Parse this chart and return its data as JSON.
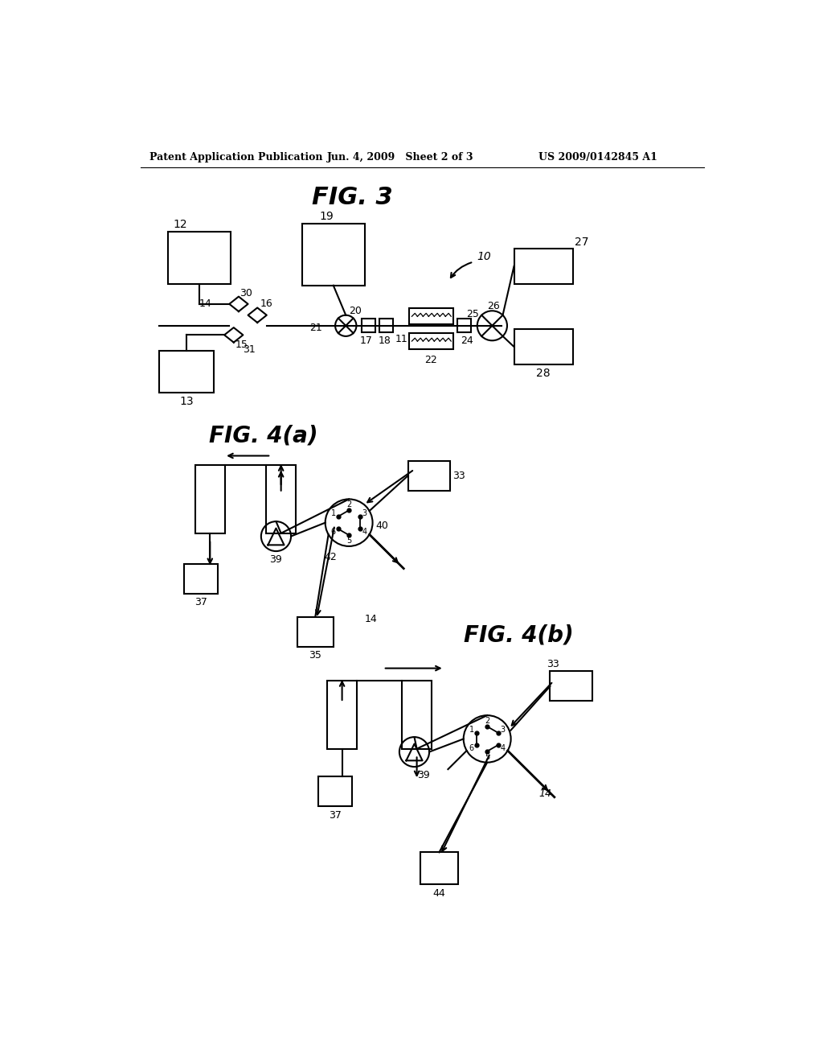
{
  "bg_color": "#ffffff",
  "header_left": "Patent Application Publication",
  "header_center": "Jun. 4, 2009   Sheet 2 of 3",
  "header_right": "US 2009/0142845 A1",
  "fig3_title": "FIG. 3",
  "fig4a_title": "FIG. 4(a)",
  "fig4b_title": "FIG. 4(b)"
}
